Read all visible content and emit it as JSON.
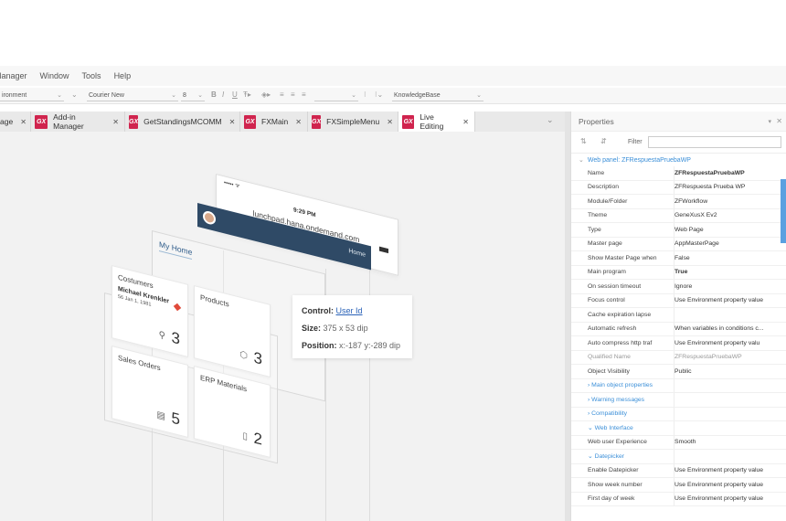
{
  "menubar": {
    "items": [
      "Manager",
      "Window",
      "Tools",
      "Help"
    ]
  },
  "toolbar": {
    "env_select": "ironment",
    "font_select": "Courier New",
    "size_select": "8",
    "kb_select": "KnowledgeBase"
  },
  "tabs": [
    {
      "label": "age",
      "gx": false,
      "active": false
    },
    {
      "label": "Add-in Manager",
      "gx": true,
      "active": false
    },
    {
      "label": "GetStandingsMCOMM",
      "gx": true,
      "active": false
    },
    {
      "label": "FXMain",
      "gx": true,
      "active": false
    },
    {
      "label": "FXSimpleMenu",
      "gx": true,
      "active": false
    },
    {
      "label": "Live Editing",
      "gx": true,
      "active": true
    }
  ],
  "gx_label": "GX",
  "mockup": {
    "carrier": "••••• ᯤ",
    "time": "9:29 PM",
    "url": "lunchpad.hana.ondemand.com",
    "home": "Home",
    "my_home": "My Home",
    "tiles": [
      {
        "title": "Costumers",
        "sub1": "Michael Krenkler",
        "sub2": "56 Jan 1, 1981",
        "number": "3"
      },
      {
        "title": "Products",
        "number": "3"
      },
      {
        "title": "Sales Orders",
        "number": "5"
      },
      {
        "title": "ERP Materials",
        "number": "2"
      }
    ]
  },
  "tooltip": {
    "control_label": "Control:",
    "control_value": "User Id",
    "size_label": "Size:",
    "size_value": "375 x 53 dip",
    "position_label": "Position:",
    "position_value": "x:-187 y:-289 dip"
  },
  "properties": {
    "title": "Properties",
    "filter_label": "Filter",
    "group": "Web panel: ZFRespuestaPruebaWP",
    "rows": [
      {
        "k": "Name",
        "v": "ZFRespuestaPruebaWP",
        "style": "bold"
      },
      {
        "k": "Description",
        "v": "ZFRespuesta Prueba WP",
        "style": ""
      },
      {
        "k": "Module/Folder",
        "v": "ZFWorkflow",
        "style": ""
      },
      {
        "k": "Theme",
        "v": "GeneXusX Ev2",
        "style": ""
      },
      {
        "k": "Type",
        "v": "Web Page",
        "style": ""
      },
      {
        "k": "Master page",
        "v": "AppMasterPage",
        "style": ""
      },
      {
        "k": "Show Master Page when",
        "v": "False",
        "style": ""
      },
      {
        "k": "Main program",
        "v": "True",
        "style": "bold"
      },
      {
        "k": "On session timeout",
        "v": "Ignore",
        "style": ""
      },
      {
        "k": "Focus control",
        "v": "Use Environment property value",
        "style": ""
      },
      {
        "k": "Cache expiration lapse",
        "v": "",
        "style": ""
      },
      {
        "k": "Automatic refresh",
        "v": "When variables in conditions c...",
        "style": ""
      },
      {
        "k": "Auto compress http traf",
        "v": "Use Environment property valu",
        "style": ""
      },
      {
        "k": "Qualified Name",
        "v": "ZFRespuestaPruebaWP",
        "style": "grey"
      },
      {
        "k": "Object Visibility",
        "v": "Public",
        "style": ""
      },
      {
        "k": "› Main object properties",
        "v": "",
        "style": "blue"
      },
      {
        "k": "› Warning messages",
        "v": "",
        "style": "blue"
      },
      {
        "k": "› Compatibility",
        "v": "",
        "style": "blue"
      },
      {
        "k": "⌄ Web Interface",
        "v": "",
        "style": "blue"
      },
      {
        "k": "Web user Experience",
        "v": "Smooth",
        "style": ""
      },
      {
        "k": "⌄ Datepicker",
        "v": "",
        "style": "blue"
      },
      {
        "k": "Enable Datepicker",
        "v": "Use Environment property value",
        "style": ""
      },
      {
        "k": "Show week number",
        "v": "Use Environment property value",
        "style": ""
      },
      {
        "k": "First day of week",
        "v": "Use Environment property value",
        "style": ""
      }
    ]
  }
}
